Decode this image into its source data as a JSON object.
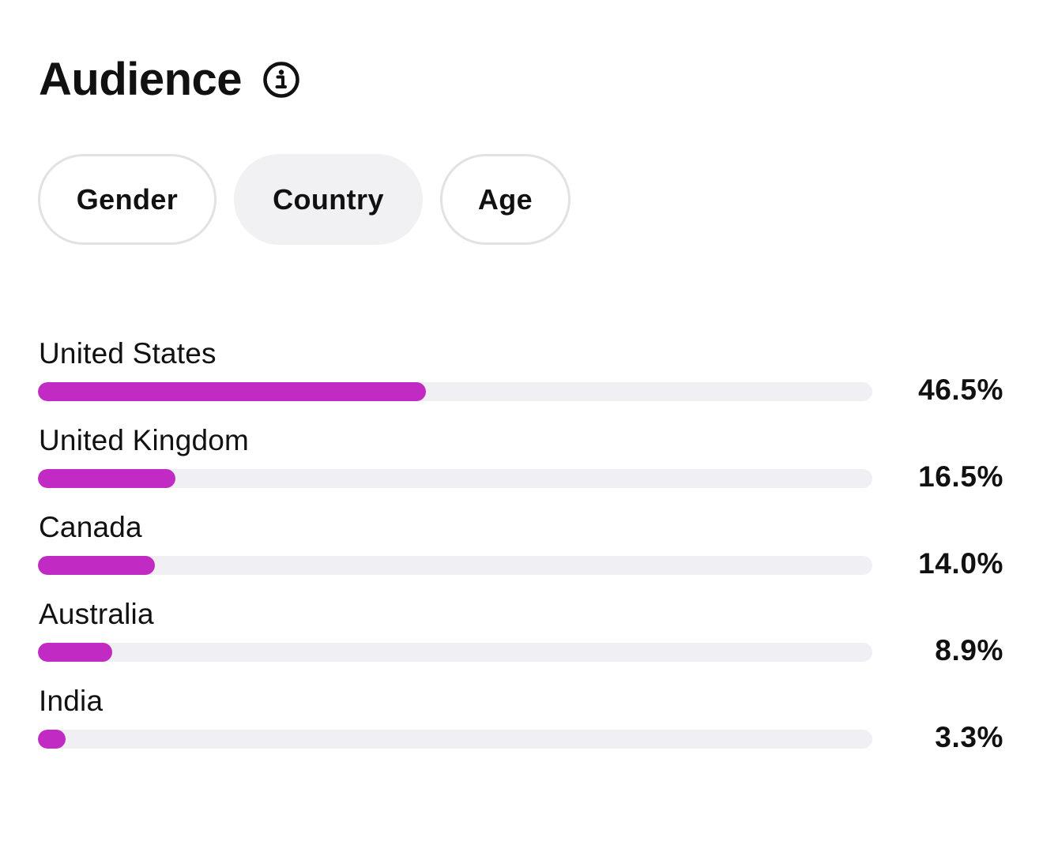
{
  "header": {
    "title": "Audience",
    "info_icon": "info-circle-icon"
  },
  "tabs": [
    {
      "label": "Gender",
      "active": false
    },
    {
      "label": "Country",
      "active": true
    },
    {
      "label": "Age",
      "active": false
    }
  ],
  "countries": [
    {
      "name": "United States",
      "value_label": "46.5%",
      "fraction": 0.465
    },
    {
      "name": "United Kingdom",
      "value_label": "16.5%",
      "fraction": 0.165
    },
    {
      "name": "Canada",
      "value_label": "14.0%",
      "fraction": 0.14
    },
    {
      "name": "Australia",
      "value_label": "8.9%",
      "fraction": 0.089
    },
    {
      "name": "India",
      "value_label": "3.3%",
      "fraction": 0.033
    }
  ],
  "colors": {
    "bar_fill": "#c12ac3",
    "bar_track": "#f0f0f4",
    "active_tab_bg": "#f1f1f4",
    "text": "#111111"
  }
}
